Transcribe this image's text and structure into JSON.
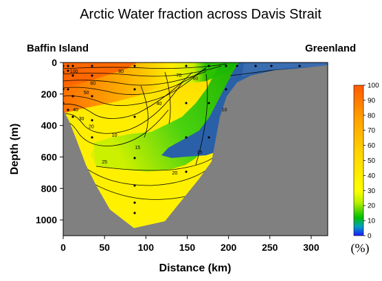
{
  "chart_data": {
    "type": "heatmap",
    "title": "Arctic Water fraction across Davis Strait",
    "xlabel": "Distance (km)",
    "ylabel": "Depth (m)",
    "xlim": [
      0,
      320
    ],
    "ylim": [
      1100,
      0
    ],
    "x_ticks": [
      "0",
      "50",
      "100",
      "150",
      "200",
      "250",
      "300"
    ],
    "y_ticks": [
      "0",
      "200",
      "400",
      "600",
      "800",
      "1000"
    ],
    "left_annotation": "Baffin Island",
    "right_annotation": "Greenland",
    "colorbar": {
      "unit_label": "(%)",
      "ticks": [
        "100",
        "90",
        "80",
        "70",
        "60",
        "50",
        "40",
        "30",
        "20",
        "10",
        "0"
      ],
      "range": [
        0,
        100
      ],
      "colors": [
        "#1c1cff",
        "#00c000",
        "#ffff00",
        "#ffd700",
        "#ff6000"
      ]
    },
    "contour_labels": [
      {
        "x": 13,
        "y": 55,
        "text": "100"
      },
      {
        "x": 70,
        "y": 55,
        "text": "80"
      },
      {
        "x": 36,
        "y": 130,
        "text": "60"
      },
      {
        "x": 28,
        "y": 190,
        "text": "50"
      },
      {
        "x": 15,
        "y": 300,
        "text": "40"
      },
      {
        "x": 22,
        "y": 355,
        "text": "30"
      },
      {
        "x": 34,
        "y": 405,
        "text": "20"
      },
      {
        "x": 140,
        "y": 80,
        "text": "70"
      },
      {
        "x": 160,
        "y": 100,
        "text": "60"
      },
      {
        "x": 116,
        "y": 260,
        "text": "40"
      },
      {
        "x": 62,
        "y": 460,
        "text": "10"
      },
      {
        "x": 90,
        "y": 540,
        "text": "15"
      },
      {
        "x": 50,
        "y": 630,
        "text": "25"
      },
      {
        "x": 135,
        "y": 700,
        "text": "20"
      },
      {
        "x": 195,
        "y": 300,
        "text": "10"
      },
      {
        "x": 165,
        "y": 570,
        "text": "15"
      }
    ],
    "stations_km": [
      0,
      7,
      13,
      42,
      88,
      150,
      178,
      200,
      212,
      235,
      255,
      292
    ],
    "bathymetry": [
      [
        0,
        380
      ],
      [
        13,
        470
      ],
      [
        40,
        590
      ],
      [
        85,
        1060
      ],
      [
        125,
        1000
      ],
      [
        175,
        650
      ],
      [
        205,
        220
      ],
      [
        233,
        90
      ],
      [
        270,
        40
      ],
      [
        320,
        10
      ]
    ]
  }
}
